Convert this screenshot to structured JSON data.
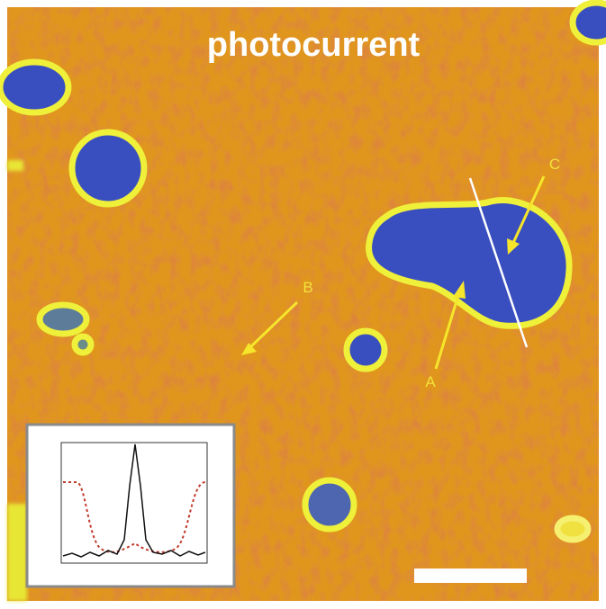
{
  "title": "photocurrent",
  "annotations": [
    {
      "label": "A"
    },
    {
      "label": "B"
    },
    {
      "label": "C"
    }
  ]
}
